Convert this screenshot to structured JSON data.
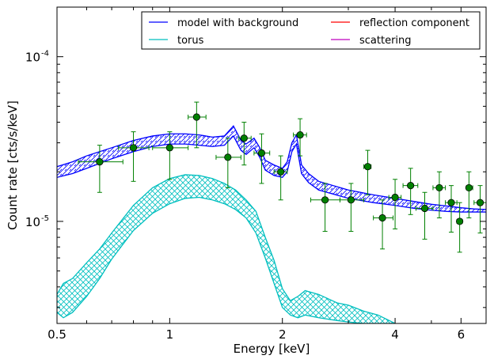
{
  "chart_data": {
    "type": "line",
    "title": "",
    "xlabel": "Energy [keV]",
    "ylabel": "Count rate [cts/s/keV]",
    "xscale": "log",
    "yscale": "log",
    "xlim": [
      0.5,
      7.0
    ],
    "ylim": [
      2.4e-06,
      0.0002
    ],
    "grid": false,
    "legend_position": "top-right",
    "x_tick_labels": [
      {
        "value": 0.5,
        "label": "0.5"
      },
      {
        "value": 1,
        "label": "1"
      },
      {
        "value": 2,
        "label": "2"
      },
      {
        "value": 4,
        "label": "4"
      },
      {
        "value": 6,
        "label": "6"
      }
    ],
    "y_tick_labels": [
      {
        "value": 0.0001,
        "base": "10",
        "exp": "-4"
      },
      {
        "value": 1e-05,
        "base": "10",
        "exp": "-5"
      }
    ],
    "legend": [
      {
        "name": "model with background",
        "color": "#0000ff"
      },
      {
        "name": "torus",
        "color": "#00bfbf"
      },
      {
        "name": "reflection component",
        "color": "#ff0000"
      },
      {
        "name": "scattering",
        "color": "#bf00bf"
      }
    ],
    "series": [
      {
        "name": "model with background",
        "color": "#0000ff",
        "x": [
          0.5,
          0.55,
          0.6,
          0.7,
          0.8,
          0.9,
          1.0,
          1.1,
          1.2,
          1.3,
          1.4,
          1.48,
          1.55,
          1.6,
          1.68,
          1.74,
          1.8,
          1.9,
          2.0,
          2.06,
          2.12,
          2.18,
          2.25,
          2.35,
          2.5,
          3.0,
          3.5,
          4.0,
          4.5,
          5.0,
          5.5,
          6.0,
          6.5,
          7.0
        ],
        "upper": [
          2.15e-05,
          2.3e-05,
          2.5e-05,
          2.8e-05,
          3.1e-05,
          3.3e-05,
          3.4e-05,
          3.4e-05,
          3.35e-05,
          3.25e-05,
          3.3e-05,
          3.8e-05,
          3.1e-05,
          2.95e-05,
          3.2e-05,
          2.8e-05,
          2.35e-05,
          2.2e-05,
          2.1e-05,
          2.3e-05,
          3e-05,
          3.35e-05,
          2.2e-05,
          1.95e-05,
          1.75e-05,
          1.55e-05,
          1.45e-05,
          1.38e-05,
          1.32e-05,
          1.27e-05,
          1.24e-05,
          1.21e-05,
          1.19e-05,
          1.18e-05
        ],
        "lower": [
          1.85e-05,
          1.95e-05,
          2.1e-05,
          2.4e-05,
          2.65e-05,
          2.85e-05,
          2.95e-05,
          2.95e-05,
          2.9e-05,
          2.85e-05,
          2.9e-05,
          3.3e-05,
          2.7e-05,
          2.55e-05,
          2.8e-05,
          2.45e-05,
          2.05e-05,
          1.9e-05,
          1.85e-05,
          2e-05,
          2.65e-05,
          2.95e-05,
          1.95e-05,
          1.72e-05,
          1.55e-05,
          1.38e-05,
          1.3e-05,
          1.25e-05,
          1.2e-05,
          1.17e-05,
          1.15e-05,
          1.14e-05,
          1.14e-05,
          1.14e-05
        ]
      },
      {
        "name": "torus",
        "color": "#00bfbf",
        "x": [
          0.5,
          0.52,
          0.55,
          0.6,
          0.65,
          0.7,
          0.8,
          0.9,
          1.0,
          1.1,
          1.2,
          1.3,
          1.4,
          1.5,
          1.6,
          1.7,
          1.8,
          1.9,
          2.0,
          2.1,
          2.2,
          2.3,
          2.5,
          2.8,
          3.0,
          3.3,
          3.6,
          4.0
        ],
        "upper": [
          3.6e-06,
          4.2e-06,
          4.5e-06,
          5.6e-06,
          6.8e-06,
          8.5e-06,
          1.25e-05,
          1.6e-05,
          1.82e-05,
          1.92e-05,
          1.9e-05,
          1.82e-05,
          1.7e-05,
          1.55e-05,
          1.35e-05,
          1.15e-05,
          8e-06,
          5.8e-06,
          3.9e-06,
          3.3e-06,
          3.5e-06,
          3.8e-06,
          3.6e-06,
          3.2e-06,
          3.1e-06,
          2.85e-06,
          2.7e-06,
          2.4e-06
        ],
        "lower": [
          2.8e-06,
          2.6e-06,
          2.8e-06,
          3.5e-06,
          4.5e-06,
          5.9e-06,
          8.8e-06,
          1.12e-05,
          1.28e-05,
          1.38e-05,
          1.4e-05,
          1.35e-05,
          1.28e-05,
          1.18e-05,
          1.05e-05,
          8.5e-06,
          6e-06,
          4.2e-06,
          3e-06,
          2.7e-06,
          2.6e-06,
          2.7e-06,
          2.6e-06,
          2.5e-06,
          2.45e-06,
          2.4e-06,
          2.4e-06,
          2.4e-06
        ]
      }
    ],
    "data_points": {
      "name": "data",
      "color": "#008000",
      "points": [
        {
          "x": 0.65,
          "y": 2.3e-05,
          "xlo": 0.57,
          "xhi": 0.75,
          "ylo": 1.5e-05,
          "yhi": 2.9e-05
        },
        {
          "x": 0.8,
          "y": 2.8e-05,
          "xlo": 0.73,
          "xhi": 0.88,
          "ylo": 1.75e-05,
          "yhi": 3.5e-05
        },
        {
          "x": 1.0,
          "y": 2.8e-05,
          "xlo": 0.9,
          "xhi": 1.12,
          "ylo": 1.8e-05,
          "yhi": 3.5e-05
        },
        {
          "x": 1.18,
          "y": 4.3e-05,
          "xlo": 1.12,
          "xhi": 1.25,
          "ylo": 2.8e-05,
          "yhi": 5.3e-05
        },
        {
          "x": 1.43,
          "y": 2.45e-05,
          "xlo": 1.33,
          "xhi": 1.55,
          "ylo": 1.6e-05,
          "yhi": 3.2e-05
        },
        {
          "x": 1.58,
          "y": 3.2e-05,
          "xlo": 1.53,
          "xhi": 1.65,
          "ylo": 2.2e-05,
          "yhi": 4e-05
        },
        {
          "x": 1.76,
          "y": 2.6e-05,
          "xlo": 1.68,
          "xhi": 1.85,
          "ylo": 1.7e-05,
          "yhi": 3.4e-05
        },
        {
          "x": 1.98,
          "y": 2e-05,
          "xlo": 1.9,
          "xhi": 2.06,
          "ylo": 1.35e-05,
          "yhi": 2.5e-05
        },
        {
          "x": 2.23,
          "y": 3.35e-05,
          "xlo": 2.14,
          "xhi": 2.32,
          "ylo": 2.5e-05,
          "yhi": 4.2e-05
        },
        {
          "x": 2.6,
          "y": 1.35e-05,
          "xlo": 2.38,
          "xhi": 2.85,
          "ylo": 8.7e-06,
          "yhi": 1.7e-05
        },
        {
          "x": 3.05,
          "y": 1.35e-05,
          "xlo": 2.85,
          "xhi": 3.3,
          "ylo": 8.7e-06,
          "yhi": 1.7e-05
        },
        {
          "x": 3.38,
          "y": 2.15e-05,
          "xlo": 3.3,
          "xhi": 3.45,
          "ylo": 1.45e-05,
          "yhi": 2.7e-05
        },
        {
          "x": 3.7,
          "y": 1.05e-05,
          "xlo": 3.5,
          "xhi": 3.95,
          "ylo": 6.8e-06,
          "yhi": 1.35e-05
        },
        {
          "x": 4.0,
          "y": 1.4e-05,
          "xlo": 3.85,
          "xhi": 4.15,
          "ylo": 9e-06,
          "yhi": 1.8e-05
        },
        {
          "x": 4.4,
          "y": 1.65e-05,
          "xlo": 4.2,
          "xhi": 4.6,
          "ylo": 1.1e-05,
          "yhi": 2.1e-05
        },
        {
          "x": 4.8,
          "y": 1.2e-05,
          "xlo": 4.55,
          "xhi": 5.05,
          "ylo": 7.8e-06,
          "yhi": 1.5e-05
        },
        {
          "x": 5.25,
          "y": 1.6e-05,
          "xlo": 5.05,
          "xhi": 5.45,
          "ylo": 1.05e-05,
          "yhi": 2e-05
        },
        {
          "x": 5.65,
          "y": 1.3e-05,
          "xlo": 5.45,
          "xhi": 5.85,
          "ylo": 8.6e-06,
          "yhi": 1.65e-05
        },
        {
          "x": 5.95,
          "y": 1e-05,
          "xlo": 5.85,
          "xhi": 6.05,
          "ylo": 6.5e-06,
          "yhi": 1.3e-05
        },
        {
          "x": 6.3,
          "y": 1.6e-05,
          "xlo": 6.2,
          "xhi": 6.45,
          "ylo": 1.05e-05,
          "yhi": 2e-05
        },
        {
          "x": 6.75,
          "y": 1.3e-05,
          "xlo": 6.5,
          "xhi": 7.0,
          "ylo": 8.5e-06,
          "yhi": 1.65e-05
        }
      ]
    }
  }
}
